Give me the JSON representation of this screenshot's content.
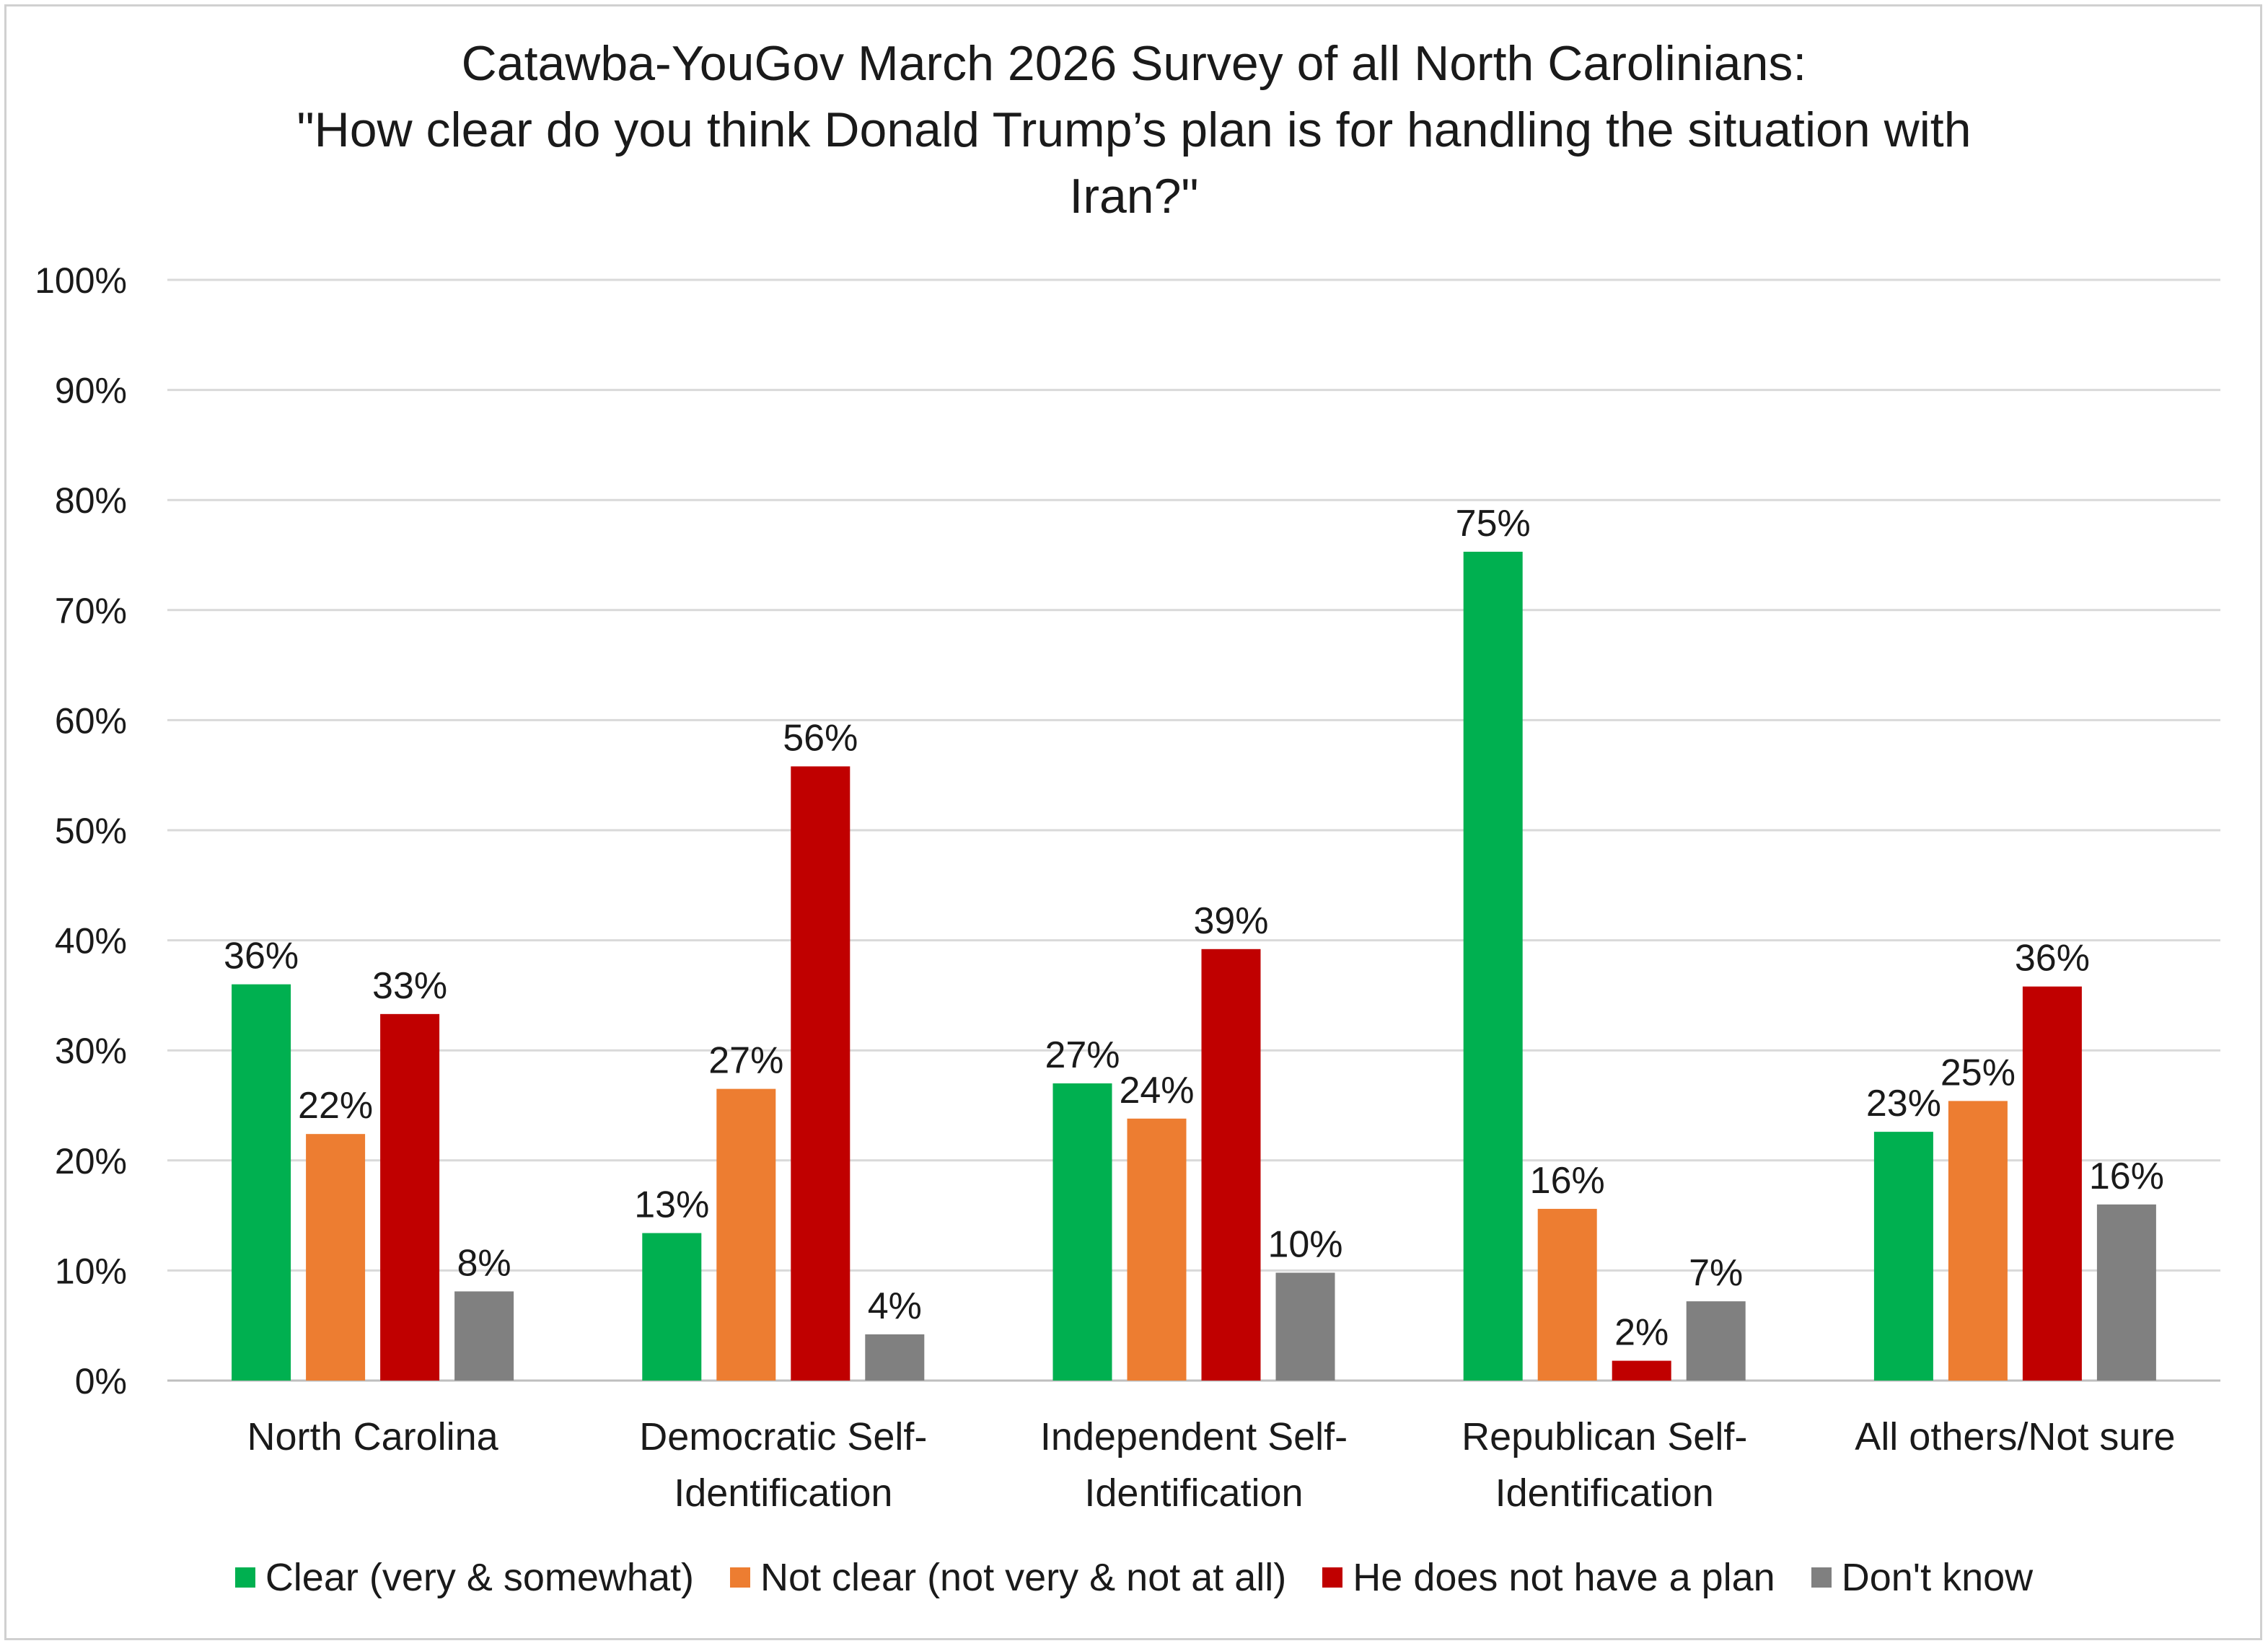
{
  "chart_data": {
    "type": "bar",
    "title_lines": [
      "Catawba-YouGov March 2026 Survey of all North Carolinians:",
      "\"How clear do you think Donald Trump’s plan is for handling the situation with",
      "Iran?\""
    ],
    "categories": [
      [
        "North Carolina"
      ],
      [
        "Democratic Self-",
        "Identification"
      ],
      [
        "Independent Self-",
        "Identification"
      ],
      [
        "Republican Self-",
        "Identification"
      ],
      [
        "All others/Not sure"
      ]
    ],
    "series": [
      {
        "name": "Clear (very & somewhat)",
        "color": "#00b050",
        "values": [
          36,
          13.4,
          27,
          75.3,
          22.6
        ],
        "labels": [
          "36%",
          "13%",
          "27%",
          "75%",
          "23%"
        ]
      },
      {
        "name": "Not clear (not very & not at all)",
        "color": "#ed7d31",
        "values": [
          22.4,
          26.5,
          23.8,
          15.6,
          25.4
        ],
        "labels": [
          "22%",
          "27%",
          "24%",
          "16%",
          "25%"
        ]
      },
      {
        "name": "He does not have a plan",
        "color": "#c00000",
        "values": [
          33.3,
          55.8,
          39.2,
          1.8,
          35.8
        ],
        "labels": [
          "33%",
          "56%",
          "39%",
          "2%",
          "36%"
        ]
      },
      {
        "name": "Don't know",
        "color": "#808080",
        "values": [
          8.1,
          4.2,
          9.8,
          7.2,
          16
        ],
        "labels": [
          "8%",
          "4%",
          "10%",
          "7%",
          "16%"
        ]
      }
    ],
    "y_ticks": [
      "0%",
      "10%",
      "20%",
      "30%",
      "40%",
      "50%",
      "60%",
      "70%",
      "80%",
      "90%",
      "100%"
    ],
    "ylim": [
      0,
      100
    ],
    "xlabel": "",
    "ylabel": "",
    "grid": true,
    "legend_position": "bottom"
  }
}
